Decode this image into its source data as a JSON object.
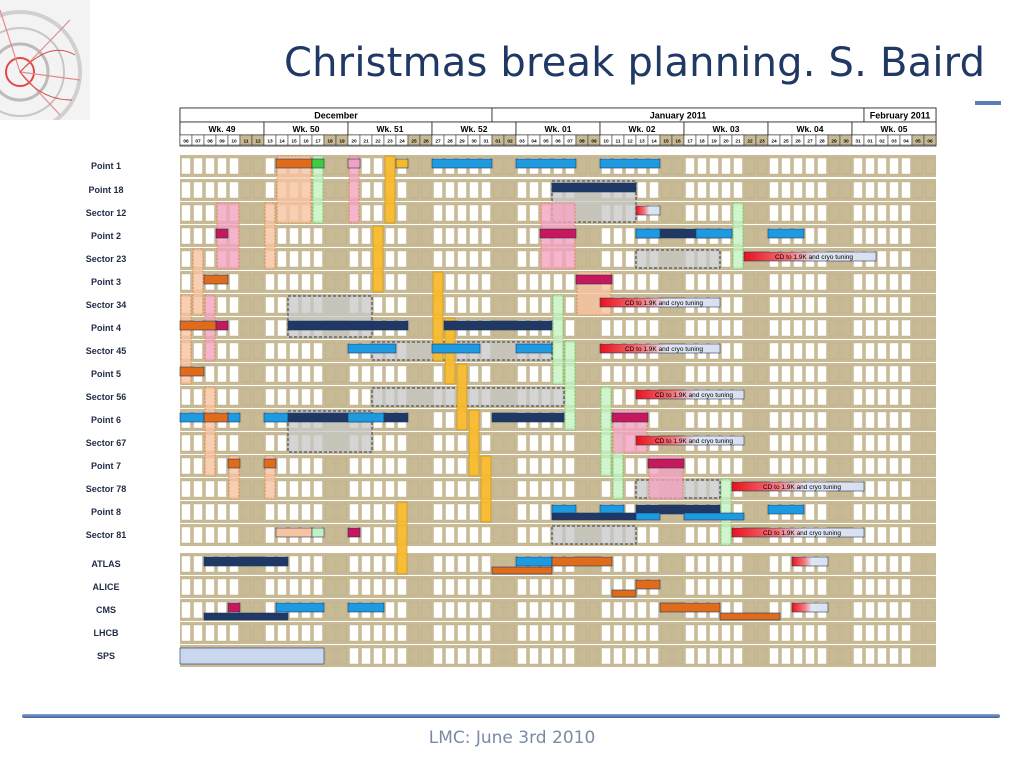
{
  "title": "Christmas break planning. S. Baird",
  "footer": "LMC: June 3rd 2010",
  "chart_data": {
    "type": "gantt",
    "months": [
      {
        "label": "December",
        "start": 0,
        "end": 26
      },
      {
        "label": "January 2011",
        "start": 26,
        "end": 57
      },
      {
        "label": "February 2011",
        "start": 57,
        "end": 63
      }
    ],
    "weeks": [
      {
        "label": "Wk. 49",
        "start": 0,
        "end": 7
      },
      {
        "label": "Wk. 50",
        "start": 7,
        "end": 14
      },
      {
        "label": "Wk. 51",
        "start": 14,
        "end": 21
      },
      {
        "label": "Wk. 52",
        "start": 21,
        "end": 28
      },
      {
        "label": "Wk. 01",
        "start": 28,
        "end": 35
      },
      {
        "label": "Wk. 02",
        "start": 35,
        "end": 42
      },
      {
        "label": "Wk. 03",
        "start": 42,
        "end": 49
      },
      {
        "label": "Wk. 04",
        "start": 49,
        "end": 56
      },
      {
        "label": "Wk. 05",
        "start": 56,
        "end": 63
      }
    ],
    "days": [
      "06",
      "07",
      "08",
      "09",
      "10",
      "11",
      "12",
      "13",
      "14",
      "15",
      "16",
      "17",
      "18",
      "19",
      "20",
      "21",
      "22",
      "23",
      "24",
      "25",
      "26",
      "27",
      "28",
      "29",
      "30",
      "31",
      "01",
      "02",
      "03",
      "04",
      "05",
      "06",
      "07",
      "08",
      "09",
      "10",
      "11",
      "12",
      "13",
      "14",
      "15",
      "16",
      "17",
      "18",
      "19",
      "20",
      "21",
      "22",
      "23",
      "24",
      "25",
      "26",
      "27",
      "28",
      "29",
      "30",
      "31",
      "01",
      "02",
      "03",
      "04",
      "05",
      "06"
    ],
    "weekend_days": [
      5,
      6,
      12,
      13,
      19,
      20,
      26,
      27,
      33,
      34,
      40,
      41,
      47,
      48,
      54,
      55,
      61,
      62
    ],
    "rows": [
      "Point 1",
      "Point 18",
      "Sector 12",
      "Point 2",
      "Sector 23",
      "Point 3",
      "Sector 34",
      "Point 4",
      "Sector 45",
      "Point 5",
      "Sector 56",
      "Point 6",
      "Sector 67",
      "Point 7",
      "Sector 78",
      "Point 8",
      "Sector 81",
      "ATLAS",
      "ALICE",
      "CMS",
      "LHCB",
      "SPS"
    ],
    "bar_label": "CD to 1.9K and cryo tuning",
    "colors": {
      "navy": "#1f3864",
      "blue": "#1e9be0",
      "orange": "#e06c1b",
      "salmon": "#f7c3a1",
      "pink": "#f2a2c0",
      "magenta": "#c7185b",
      "green": "#3ecc3e",
      "lightgreen": "#c2f2c2",
      "yellow": "#f7b92b",
      "grey": "#c2c2c2",
      "tan": "#c8ba94",
      "red": "#e8121c",
      "lavender": "#cad7ef"
    },
    "bars": [
      {
        "row": 0,
        "start": 8,
        "end": 11,
        "color": "orange"
      },
      {
        "row": 0,
        "start": 11,
        "end": 12,
        "color": "green"
      },
      {
        "row": 0,
        "start": 14,
        "end": 15,
        "color": "pink"
      },
      {
        "row": 0,
        "start": 18,
        "end": 19,
        "color": "yellow"
      },
      {
        "row": 0,
        "start": 21,
        "end": 26,
        "color": "blue"
      },
      {
        "row": 0,
        "start": 28,
        "end": 33,
        "color": "blue"
      },
      {
        "row": 0,
        "start": 35,
        "end": 40,
        "color": "blue"
      },
      {
        "row": 1,
        "start": 31,
        "end": 38,
        "color": "navy"
      },
      {
        "row": 2,
        "start": 38,
        "end": 40,
        "color": "red",
        "fade": true
      },
      {
        "row": 3,
        "start": 3,
        "end": 4,
        "color": "magenta"
      },
      {
        "row": 3,
        "start": 30,
        "end": 33,
        "color": "magenta"
      },
      {
        "row": 3,
        "start": 38,
        "end": 45,
        "color": "navy"
      },
      {
        "row": 3,
        "start": 38,
        "end": 40,
        "color": "blue"
      },
      {
        "row": 3,
        "start": 43,
        "end": 46,
        "color": "blue"
      },
      {
        "row": 3,
        "start": 49,
        "end": 52,
        "color": "blue"
      },
      {
        "row": 4,
        "start": 47,
        "end": 58,
        "color": "red",
        "fade": true,
        "label": true
      },
      {
        "row": 5,
        "start": 2,
        "end": 4,
        "color": "orange"
      },
      {
        "row": 5,
        "start": 33,
        "end": 36,
        "color": "magenta"
      },
      {
        "row": 6,
        "start": 35,
        "end": 45,
        "color": "red",
        "fade": true,
        "label": true
      },
      {
        "row": 7,
        "start": 0,
        "end": 3,
        "color": "orange"
      },
      {
        "row": 7,
        "start": 3,
        "end": 4,
        "color": "magenta"
      },
      {
        "row": 7,
        "start": 9,
        "end": 16,
        "color": "navy"
      },
      {
        "row": 7,
        "start": 16,
        "end": 19,
        "color": "navy"
      },
      {
        "row": 7,
        "start": 22,
        "end": 26,
        "color": "navy"
      },
      {
        "row": 7,
        "start": 26,
        "end": 31,
        "color": "navy"
      },
      {
        "row": 8,
        "start": 14,
        "end": 18,
        "color": "blue"
      },
      {
        "row": 8,
        "start": 21,
        "end": 25,
        "color": "blue"
      },
      {
        "row": 8,
        "start": 28,
        "end": 31,
        "color": "blue"
      },
      {
        "row": 8,
        "start": 35,
        "end": 45,
        "color": "red",
        "fade": true,
        "label": true
      },
      {
        "row": 9,
        "start": 0,
        "end": 2,
        "color": "orange"
      },
      {
        "row": 10,
        "start": 38,
        "end": 47,
        "color": "red",
        "fade": true,
        "label": true
      },
      {
        "row": 11,
        "start": 0,
        "end": 2,
        "color": "blue"
      },
      {
        "row": 11,
        "start": 2,
        "end": 4,
        "color": "orange"
      },
      {
        "row": 11,
        "start": 4,
        "end": 5,
        "color": "blue"
      },
      {
        "row": 11,
        "start": 7,
        "end": 9,
        "color": "blue"
      },
      {
        "row": 11,
        "start": 9,
        "end": 16,
        "color": "navy"
      },
      {
        "row": 11,
        "start": 14,
        "end": 17,
        "color": "blue"
      },
      {
        "row": 11,
        "start": 17,
        "end": 19,
        "color": "navy"
      },
      {
        "row": 11,
        "start": 26,
        "end": 32,
        "color": "navy"
      },
      {
        "row": 11,
        "start": 36,
        "end": 39,
        "color": "magenta"
      },
      {
        "row": 12,
        "start": 38,
        "end": 47,
        "color": "red",
        "fade": true,
        "label": true
      },
      {
        "row": 13,
        "start": 4,
        "end": 5,
        "color": "orange"
      },
      {
        "row": 13,
        "start": 7,
        "end": 8,
        "color": "orange"
      },
      {
        "row": 13,
        "start": 39,
        "end": 42,
        "color": "magenta"
      },
      {
        "row": 14,
        "start": 46,
        "end": 57,
        "color": "red",
        "fade": true,
        "label": true
      },
      {
        "row": 15,
        "start": 31,
        "end": 33,
        "color": "blue"
      },
      {
        "row": 15,
        "start": 35,
        "end": 37,
        "color": "blue"
      },
      {
        "row": 15,
        "start": 38,
        "end": 45,
        "color": "navy"
      },
      {
        "row": 15,
        "start": 31,
        "end": 38,
        "color": "navy",
        "thin": true
      },
      {
        "row": 15,
        "start": 38,
        "end": 40,
        "color": "blue",
        "thin": true
      },
      {
        "row": 15,
        "start": 42,
        "end": 47,
        "color": "blue",
        "thin": true
      },
      {
        "row": 15,
        "start": 49,
        "end": 52,
        "color": "blue"
      },
      {
        "row": 16,
        "start": 8,
        "end": 11,
        "color": "salmon"
      },
      {
        "row": 16,
        "start": 11,
        "end": 12,
        "color": "lightgreen"
      },
      {
        "row": 16,
        "start": 14,
        "end": 15,
        "color": "magenta"
      },
      {
        "row": 16,
        "start": 46,
        "end": 57,
        "color": "red",
        "fade": true,
        "label": true
      },
      {
        "row": 17,
        "start": 2,
        "end": 9,
        "color": "navy"
      },
      {
        "row": 17,
        "start": 28,
        "end": 31,
        "color": "blue"
      },
      {
        "row": 17,
        "start": 31,
        "end": 36,
        "color": "orange"
      },
      {
        "row": 17,
        "start": 26,
        "end": 31,
        "color": "orange",
        "low": true
      },
      {
        "row": 17,
        "start": 51,
        "end": 54,
        "color": "red",
        "fade": true
      },
      {
        "row": 18,
        "start": 38,
        "end": 40,
        "color": "orange"
      },
      {
        "row": 18,
        "start": 36,
        "end": 38,
        "color": "orange",
        "low": true
      },
      {
        "row": 19,
        "start": 2,
        "end": 9,
        "color": "navy",
        "low": true
      },
      {
        "row": 19,
        "start": 4,
        "end": 5,
        "color": "magenta"
      },
      {
        "row": 19,
        "start": 8,
        "end": 12,
        "color": "blue"
      },
      {
        "row": 19,
        "start": 14,
        "end": 17,
        "color": "blue"
      },
      {
        "row": 19,
        "start": 40,
        "end": 45,
        "color": "orange"
      },
      {
        "row": 19,
        "start": 45,
        "end": 50,
        "color": "orange",
        "low": true
      },
      {
        "row": 19,
        "start": 51,
        "end": 54,
        "color": "red",
        "fade": true
      },
      {
        "row": 21,
        "start": 0,
        "end": 12,
        "color": "lavender",
        "full": true
      }
    ],
    "columns_vertical": [
      {
        "start_row": 4,
        "end_row": 6,
        "day": 1,
        "color": "salmon"
      },
      {
        "start_row": 6,
        "end_row": 9,
        "day": 0,
        "color": "salmon"
      },
      {
        "start_row": 10,
        "end_row": 13,
        "day": 2,
        "color": "salmon"
      },
      {
        "start_row": 0,
        "end_row": 2,
        "day": 8,
        "color": "salmon",
        "width": 3
      },
      {
        "start_row": 2,
        "end_row": 4,
        "day": 3,
        "color": "pink",
        "width": 2
      },
      {
        "start_row": 2,
        "end_row": 4,
        "day": 7,
        "color": "salmon"
      },
      {
        "start_row": 6,
        "end_row": 8,
        "day": 2,
        "color": "pink"
      },
      {
        "start_row": 13,
        "end_row": 14,
        "day": 4,
        "color": "salmon"
      },
      {
        "start_row": 13,
        "end_row": 14,
        "day": 7,
        "color": "salmon"
      },
      {
        "start_row": 0,
        "end_row": 2,
        "day": 11,
        "color": "lightgreen"
      },
      {
        "start_row": 0,
        "end_row": 2,
        "day": 14,
        "color": "pink"
      },
      {
        "start_row": 0,
        "end_row": 2,
        "day": 17,
        "color": "yellow"
      },
      {
        "start_row": 3,
        "end_row": 5,
        "day": 16,
        "color": "yellow"
      },
      {
        "start_row": 5,
        "end_row": 8,
        "day": 21,
        "color": "yellow"
      },
      {
        "start_row": 7,
        "end_row": 9,
        "day": 22,
        "color": "yellow"
      },
      {
        "start_row": 9,
        "end_row": 11,
        "day": 23,
        "color": "yellow"
      },
      {
        "start_row": 11,
        "end_row": 13,
        "day": 24,
        "color": "yellow"
      },
      {
        "start_row": 13,
        "end_row": 15,
        "day": 25,
        "color": "yellow"
      },
      {
        "start_row": 15,
        "end_row": 17,
        "day": 18,
        "color": "yellow"
      },
      {
        "start_row": 6,
        "end_row": 9,
        "day": 31,
        "color": "lightgreen"
      },
      {
        "start_row": 8,
        "end_row": 11,
        "day": 32,
        "color": "lightgreen"
      },
      {
        "start_row": 10,
        "end_row": 13,
        "day": 35,
        "color": "lightgreen"
      },
      {
        "start_row": 12,
        "end_row": 14,
        "day": 36,
        "color": "lightgreen"
      },
      {
        "start_row": 14,
        "end_row": 16,
        "day": 45,
        "color": "lightgreen"
      },
      {
        "start_row": 2,
        "end_row": 4,
        "day": 46,
        "color": "lightgreen"
      },
      {
        "start_row": 2,
        "end_row": 4,
        "day": 30,
        "color": "pink",
        "width": 3
      },
      {
        "start_row": 5,
        "end_row": 6,
        "day": 33,
        "color": "salmon",
        "width": 3
      },
      {
        "start_row": 11,
        "end_row": 12,
        "day": 36,
        "color": "pink",
        "width": 3
      },
      {
        "start_row": 13,
        "end_row": 14,
        "day": 39,
        "color": "pink",
        "width": 3
      }
    ],
    "dashed_boxes": [
      {
        "row_start": 1,
        "row_end": 2,
        "start": 31,
        "end": 38
      },
      {
        "row_start": 4,
        "row_end": 4,
        "start": 38,
        "end": 45
      },
      {
        "row_start": 6,
        "row_end": 7,
        "start": 9,
        "end": 16
      },
      {
        "row_start": 8,
        "row_end": 8,
        "start": 16,
        "end": 31
      },
      {
        "row_start": 10,
        "row_end": 10,
        "start": 16,
        "end": 32
      },
      {
        "row_start": 11,
        "row_end": 12,
        "start": 9,
        "end": 16
      },
      {
        "row_start": 14,
        "row_end": 14,
        "start": 38,
        "end": 45
      },
      {
        "row_start": 16,
        "row_end": 16,
        "start": 31,
        "end": 38
      }
    ]
  }
}
